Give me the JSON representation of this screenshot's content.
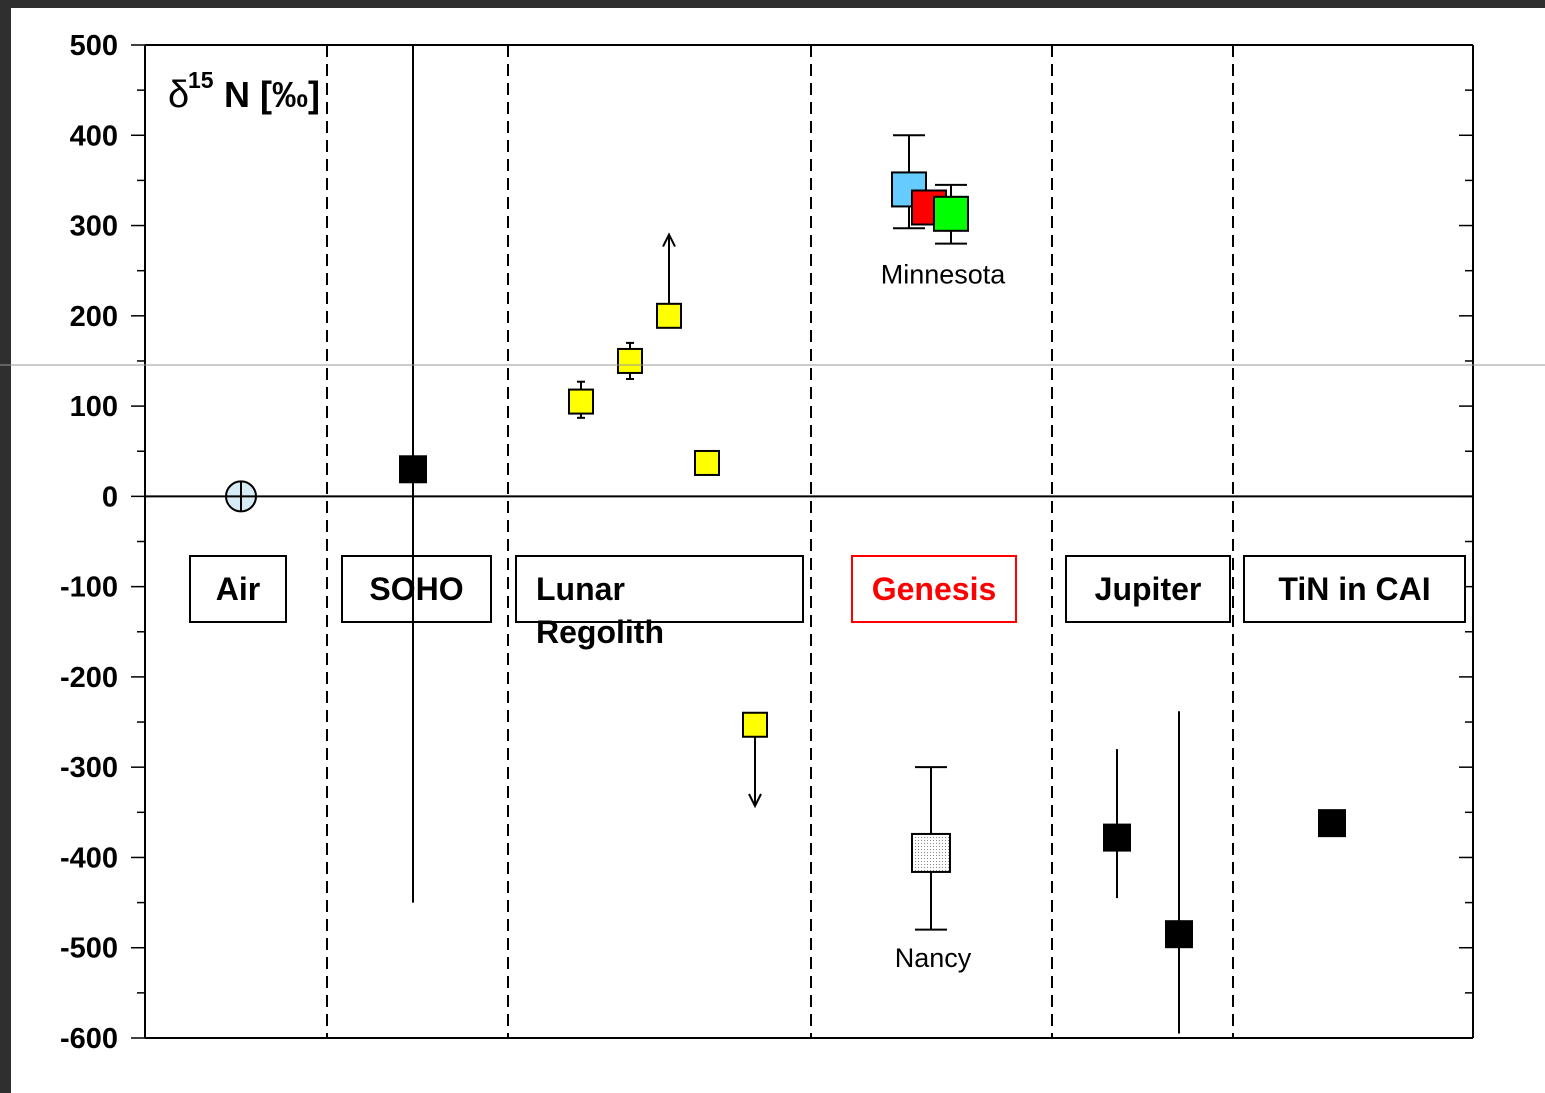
{
  "chart_data": {
    "type": "scatter",
    "ylabel_prefix": "δ",
    "ylabel_sup": "15",
    "ylabel_suffix": "N [‰]",
    "ylim": [
      -600,
      500
    ],
    "y_ticks": [
      500,
      400,
      300,
      200,
      100,
      0,
      -100,
      -200,
      -300,
      -400,
      -500,
      -600
    ],
    "grid": false,
    "categories": [
      {
        "label": "Air",
        "lines": [
          "Air"
        ],
        "color": "#000000"
      },
      {
        "label": "SOHO",
        "lines": [
          "SOHO"
        ],
        "color": "#000000"
      },
      {
        "label": "Lunar Regolith",
        "lines": [
          "Lunar",
          "Regolith"
        ],
        "color": "#000000"
      },
      {
        "label": "Genesis",
        "lines": [
          "Genesis"
        ],
        "color": "#ff0000"
      },
      {
        "label": "Jupiter",
        "lines": [
          "Jupiter"
        ],
        "color": "#000000"
      },
      {
        "label": "TiN in CAI",
        "lines": [
          "TiN in CAI"
        ],
        "color": "#000000"
      }
    ],
    "points": [
      {
        "group": "Air",
        "y": 0,
        "marker": "circle-cross",
        "color": "#d6ecf5"
      },
      {
        "group": "SOHO",
        "y": 30,
        "err_low": -450,
        "err_high": 500,
        "marker": "square",
        "color": "#000000"
      },
      {
        "group": "Lunar Regolith",
        "y": 105,
        "err_low": 87,
        "err_high": 127,
        "marker": "square",
        "color": "#ffff00"
      },
      {
        "group": "Lunar Regolith",
        "y": 150,
        "err_low": 130,
        "err_high": 170,
        "marker": "square",
        "color": "#ffff00"
      },
      {
        "group": "Lunar Regolith",
        "y": 200,
        "arrow": "up",
        "marker": "square",
        "color": "#ffff00"
      },
      {
        "group": "Lunar Regolith",
        "y": 37,
        "marker": "square",
        "color": "#ffff00"
      },
      {
        "group": "Lunar Regolith",
        "y": -253,
        "arrow": "down",
        "marker": "square",
        "color": "#ffff00"
      },
      {
        "group": "Genesis",
        "y": 340,
        "err_low": 297,
        "err_high": 400,
        "marker": "square",
        "color": "#66ccff",
        "series": "Minnesota"
      },
      {
        "group": "Genesis",
        "y": 320,
        "marker": "square",
        "color": "#ff0000",
        "series": "Minnesota"
      },
      {
        "group": "Genesis",
        "y": 313,
        "err_low": 280,
        "err_high": 345,
        "marker": "square",
        "color": "#00ff00",
        "series": "Minnesota"
      },
      {
        "group": "Genesis",
        "y": -395,
        "err_low": -480,
        "err_high": -300,
        "marker": "square",
        "color": "#d9d9d9",
        "series": "Nancy"
      },
      {
        "group": "Jupiter",
        "y": -378,
        "err_low": -445,
        "err_high": -280,
        "marker": "square",
        "color": "#000000"
      },
      {
        "group": "Jupiter",
        "y": -485,
        "err_low": -595,
        "err_high": -238,
        "marker": "square",
        "color": "#000000"
      },
      {
        "group": "TiN in CAI",
        "y": -362,
        "marker": "square",
        "color": "#000000"
      }
    ],
    "annotations": [
      {
        "text": "Minnesota",
        "y": 247
      },
      {
        "text": "Nancy",
        "y": -510
      }
    ]
  }
}
